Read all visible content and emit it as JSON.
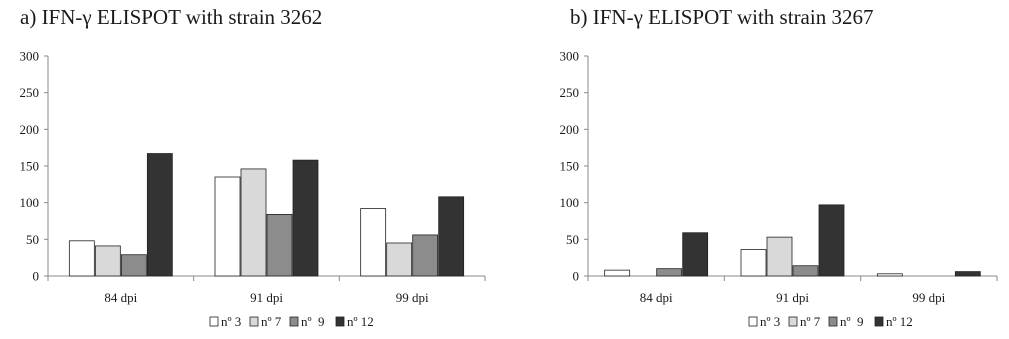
{
  "chart_data": [
    {
      "type": "bar",
      "title": "a) IFN-γ ELISPOT with strain 3262",
      "categories": [
        "84 dpi",
        "91 dpi",
        "99 dpi"
      ],
      "series": [
        {
          "name": "nº 3",
          "color": "#ffffff",
          "values": [
            48,
            135,
            92
          ]
        },
        {
          "name": "nº 7",
          "color": "#d9d9d9",
          "values": [
            41,
            146,
            45
          ]
        },
        {
          "name": "nº  9",
          "color": "#8c8c8c",
          "values": [
            29,
            84,
            56
          ]
        },
        {
          "name": "nº 12",
          "color": "#333333",
          "values": [
            167,
            158,
            108
          ]
        }
      ],
      "yticks": [
        "0",
        "50",
        "100",
        "150",
        "200",
        "250",
        "300"
      ],
      "ylim": [
        0,
        300
      ],
      "grid": false,
      "legend_position": "bottom"
    },
    {
      "type": "bar",
      "title": "b) IFN-γ ELISPOT with strain 3267",
      "categories": [
        "84 dpi",
        "91 dpi",
        "99 dpi"
      ],
      "series": [
        {
          "name": "nº 3",
          "color": "#ffffff",
          "values": [
            8,
            36,
            3
          ]
        },
        {
          "name": "nº 7",
          "color": "#d9d9d9",
          "values": [
            0,
            53,
            0
          ]
        },
        {
          "name": "nº  9",
          "color": "#8c8c8c",
          "values": [
            10,
            14,
            0
          ]
        },
        {
          "name": "nº 12",
          "color": "#333333",
          "values": [
            59,
            97,
            6
          ]
        }
      ],
      "yticks": [
        "0",
        "50",
        "100",
        "150",
        "200",
        "250",
        "300"
      ],
      "ylim": [
        0,
        300
      ],
      "grid": false,
      "legend_position": "bottom"
    }
  ]
}
